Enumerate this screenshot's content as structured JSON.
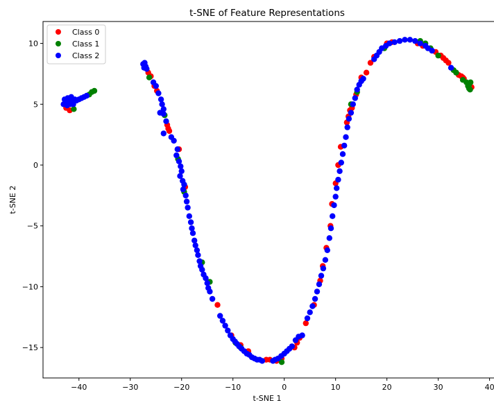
{
  "chart_data": {
    "type": "scatter",
    "title": "t-SNE of Feature Representations",
    "xlabel": "t-SNE 1",
    "ylabel": "t-SNE 2",
    "xlim": [
      -47,
      41
    ],
    "ylim": [
      -17.5,
      11.8
    ],
    "xticks": [
      -40,
      -30,
      -20,
      -10,
      0,
      10,
      20,
      30,
      40
    ],
    "yticks": [
      -15,
      -10,
      -5,
      0,
      5,
      10
    ],
    "grid": false,
    "legend_position": "top-left",
    "series": [
      {
        "name": "Class 0",
        "color": "#ff0000",
        "points": [
          [
            -42.5,
            4.7
          ],
          [
            -41.8,
            4.5
          ],
          [
            -42.0,
            5.2
          ],
          [
            -26.5,
            7.6
          ],
          [
            -26.0,
            7.3
          ],
          [
            -25.3,
            6.5
          ],
          [
            -24.8,
            6.1
          ],
          [
            -22.8,
            3.3
          ],
          [
            -22.6,
            3.0
          ],
          [
            -22.4,
            2.8
          ],
          [
            -20.5,
            1.3
          ],
          [
            -19.3,
            -1.8
          ],
          [
            -13.0,
            -11.5
          ],
          [
            -10.3,
            -14.0
          ],
          [
            -8.5,
            -14.8
          ],
          [
            -7.0,
            -15.3
          ],
          [
            -3.5,
            -16.0
          ],
          [
            -2.8,
            -16.0
          ],
          [
            -1.5,
            -16.1
          ],
          [
            -0.5,
            -15.9
          ],
          [
            2.0,
            -15.0
          ],
          [
            2.5,
            -14.6
          ],
          [
            3.0,
            -14.2
          ],
          [
            4.2,
            -13.0
          ],
          [
            5.8,
            -11.5
          ],
          [
            7.0,
            -9.5
          ],
          [
            7.5,
            -8.3
          ],
          [
            8.2,
            -6.8
          ],
          [
            9.0,
            -5.0
          ],
          [
            9.3,
            -3.2
          ],
          [
            10.0,
            -1.5
          ],
          [
            10.5,
            0.0
          ],
          [
            11.0,
            1.5
          ],
          [
            12.2,
            3.5
          ],
          [
            12.5,
            4.0
          ],
          [
            12.8,
            4.5
          ],
          [
            13.2,
            4.7
          ],
          [
            14.0,
            5.8
          ],
          [
            15.0,
            7.2
          ],
          [
            16.0,
            7.6
          ],
          [
            16.8,
            8.4
          ],
          [
            17.5,
            8.9
          ],
          [
            20.0,
            10.0
          ],
          [
            21.0,
            10.1
          ],
          [
            26.0,
            10.0
          ],
          [
            27.0,
            9.8
          ],
          [
            29.5,
            9.3
          ],
          [
            30.5,
            9.0
          ],
          [
            31.0,
            8.8
          ],
          [
            31.5,
            8.6
          ],
          [
            32.0,
            8.4
          ],
          [
            33.5,
            7.6
          ],
          [
            34.0,
            7.4
          ],
          [
            34.5,
            7.3
          ],
          [
            34.8,
            7.2
          ],
          [
            35.0,
            7.1
          ],
          [
            36.5,
            6.4
          ]
        ]
      },
      {
        "name": "Class 1",
        "color": "#008000",
        "points": [
          [
            -41.0,
            4.6
          ],
          [
            -38.0,
            5.8
          ],
          [
            -37.5,
            6.0
          ],
          [
            -37.0,
            6.1
          ],
          [
            -26.3,
            7.2
          ],
          [
            -23.3,
            4.1
          ],
          [
            -20.7,
            0.5
          ],
          [
            -19.5,
            -2.2
          ],
          [
            -16.0,
            -8.0
          ],
          [
            -14.5,
            -9.6
          ],
          [
            -9.5,
            -14.6
          ],
          [
            -8.5,
            -15.0
          ],
          [
            -0.5,
            -16.2
          ],
          [
            13.0,
            5.0
          ],
          [
            14.2,
            6.0
          ],
          [
            19.5,
            9.6
          ],
          [
            26.5,
            10.2
          ],
          [
            27.5,
            10.0
          ],
          [
            28.5,
            9.6
          ],
          [
            30.0,
            9.0
          ],
          [
            33.0,
            7.8
          ],
          [
            33.5,
            7.6
          ],
          [
            34.8,
            7.0
          ],
          [
            35.5,
            6.8
          ],
          [
            35.8,
            6.5
          ],
          [
            36.0,
            6.3
          ],
          [
            36.2,
            6.2
          ],
          [
            36.3,
            6.8
          ],
          [
            36.0,
            6.6
          ]
        ]
      },
      {
        "name": "Class 2",
        "color": "#0000ff",
        "points": [
          [
            -43.0,
            5.0
          ],
          [
            -42.8,
            5.4
          ],
          [
            -42.5,
            5.2
          ],
          [
            -42.3,
            4.9
          ],
          [
            -42.2,
            5.5
          ],
          [
            -41.9,
            5.3
          ],
          [
            -41.7,
            5.0
          ],
          [
            -41.5,
            5.6
          ],
          [
            -41.3,
            5.2
          ],
          [
            -41.1,
            5.0
          ],
          [
            -40.8,
            5.4
          ],
          [
            -40.5,
            5.3
          ],
          [
            -40.0,
            5.4
          ],
          [
            -39.5,
            5.5
          ],
          [
            -39.0,
            5.6
          ],
          [
            -38.5,
            5.7
          ],
          [
            -27.5,
            8.3
          ],
          [
            -27.3,
            8.0
          ],
          [
            -27.0,
            8.1
          ],
          [
            -26.8,
            7.9
          ],
          [
            -27.2,
            8.4
          ],
          [
            -25.5,
            6.8
          ],
          [
            -25.0,
            6.5
          ],
          [
            -24.5,
            5.9
          ],
          [
            -24.0,
            5.4
          ],
          [
            -23.8,
            5.0
          ],
          [
            -23.5,
            4.6
          ],
          [
            -24.2,
            4.3
          ],
          [
            -23.5,
            4.2
          ],
          [
            -23.0,
            3.6
          ],
          [
            -23.5,
            2.6
          ],
          [
            -22.0,
            2.3
          ],
          [
            -21.5,
            2.0
          ],
          [
            -20.8,
            1.3
          ],
          [
            -21.0,
            0.8
          ],
          [
            -20.5,
            0.3
          ],
          [
            -20.2,
            -0.1
          ],
          [
            -20.0,
            -0.5
          ],
          [
            -20.3,
            -0.9
          ],
          [
            -19.8,
            -1.3
          ],
          [
            -19.5,
            -1.6
          ],
          [
            -19.7,
            -2.0
          ],
          [
            -19.2,
            -2.5
          ],
          [
            -19.0,
            -3.0
          ],
          [
            -18.8,
            -3.5
          ],
          [
            -18.5,
            -4.2
          ],
          [
            -18.2,
            -4.7
          ],
          [
            -18.0,
            -5.2
          ],
          [
            -17.8,
            -5.6
          ],
          [
            -17.5,
            -6.2
          ],
          [
            -17.3,
            -6.6
          ],
          [
            -17.0,
            -7.0
          ],
          [
            -16.8,
            -7.4
          ],
          [
            -16.5,
            -7.9
          ],
          [
            -16.3,
            -8.3
          ],
          [
            -16.0,
            -8.6
          ],
          [
            -15.7,
            -9.0
          ],
          [
            -15.3,
            -9.3
          ],
          [
            -15.0,
            -9.7
          ],
          [
            -14.8,
            -10.1
          ],
          [
            -14.5,
            -10.4
          ],
          [
            -14.0,
            -11.0
          ],
          [
            -12.5,
            -12.4
          ],
          [
            -12.0,
            -12.8
          ],
          [
            -11.5,
            -13.2
          ],
          [
            -11.0,
            -13.6
          ],
          [
            -10.5,
            -14.0
          ],
          [
            -10.0,
            -14.3
          ],
          [
            -9.6,
            -14.5
          ],
          [
            -9.2,
            -14.7
          ],
          [
            -8.8,
            -14.9
          ],
          [
            -8.3,
            -15.1
          ],
          [
            -7.8,
            -15.3
          ],
          [
            -7.3,
            -15.5
          ],
          [
            -6.8,
            -15.6
          ],
          [
            -6.3,
            -15.8
          ],
          [
            -5.8,
            -15.9
          ],
          [
            -5.3,
            -16.0
          ],
          [
            -4.8,
            -16.0
          ],
          [
            -4.3,
            -16.1
          ],
          [
            -2.2,
            -16.1
          ],
          [
            -1.8,
            -16.0
          ],
          [
            -1.2,
            -15.9
          ],
          [
            -0.6,
            -15.7
          ],
          [
            0.0,
            -15.5
          ],
          [
            0.5,
            -15.3
          ],
          [
            1.0,
            -15.1
          ],
          [
            1.5,
            -14.9
          ],
          [
            2.2,
            -14.4
          ],
          [
            2.8,
            -14.1
          ],
          [
            3.5,
            -14.0
          ],
          [
            4.5,
            -12.6
          ],
          [
            5.0,
            -12.1
          ],
          [
            5.5,
            -11.6
          ],
          [
            6.0,
            -11.0
          ],
          [
            6.4,
            -10.4
          ],
          [
            6.8,
            -9.8
          ],
          [
            7.2,
            -9.1
          ],
          [
            7.6,
            -8.5
          ],
          [
            8.0,
            -7.8
          ],
          [
            8.4,
            -7.0
          ],
          [
            8.8,
            -6.0
          ],
          [
            9.1,
            -5.2
          ],
          [
            9.4,
            -4.2
          ],
          [
            9.7,
            -3.3
          ],
          [
            10.0,
            -2.6
          ],
          [
            10.2,
            -1.9
          ],
          [
            10.5,
            -1.2
          ],
          [
            10.8,
            -0.5
          ],
          [
            11.1,
            0.2
          ],
          [
            11.4,
            0.9
          ],
          [
            11.7,
            1.6
          ],
          [
            12.0,
            2.3
          ],
          [
            12.3,
            3.1
          ],
          [
            12.6,
            3.8
          ],
          [
            13.0,
            4.3
          ],
          [
            13.4,
            5.0
          ],
          [
            13.8,
            5.5
          ],
          [
            14.2,
            6.2
          ],
          [
            14.6,
            6.6
          ],
          [
            15.0,
            6.9
          ],
          [
            15.4,
            7.1
          ],
          [
            17.5,
            8.7
          ],
          [
            18.0,
            9.0
          ],
          [
            18.5,
            9.3
          ],
          [
            19.0,
            9.6
          ],
          [
            19.8,
            9.8
          ],
          [
            20.5,
            10.0
          ],
          [
            21.5,
            10.1
          ],
          [
            22.5,
            10.2
          ],
          [
            23.5,
            10.3
          ],
          [
            24.5,
            10.3
          ],
          [
            25.5,
            10.2
          ],
          [
            26.5,
            10.0
          ],
          [
            27.5,
            9.8
          ],
          [
            28.0,
            9.6
          ],
          [
            28.8,
            9.4
          ],
          [
            32.5,
            8.0
          ]
        ]
      }
    ]
  }
}
